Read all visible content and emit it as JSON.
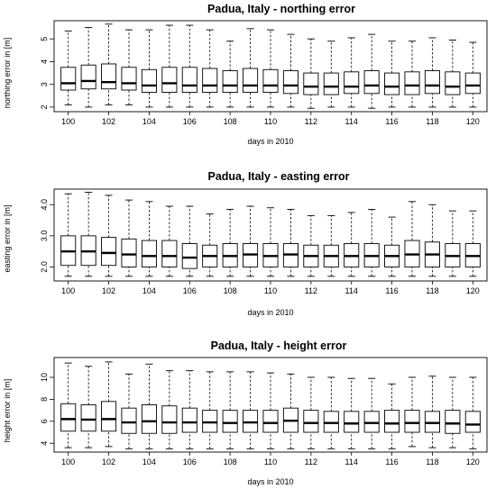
{
  "chart_data": [
    {
      "type": "boxplot",
      "title": "Padua, Italy - northing error",
      "xlabel": "days in 2010",
      "ylabel": "northing error in [m]",
      "ylim": [
        1.8,
        5.8
      ],
      "yticks": [
        2,
        3,
        4,
        5
      ],
      "xtick_labels": [
        "100",
        "102",
        "104",
        "106",
        "108",
        "110",
        "112",
        "114",
        "116",
        "118",
        "120"
      ],
      "days": [
        100,
        101,
        102,
        103,
        104,
        105,
        106,
        107,
        108,
        109,
        110,
        111,
        112,
        113,
        114,
        115,
        116,
        117,
        118,
        119,
        120
      ],
      "min": [
        2.1,
        2.0,
        2.1,
        2.1,
        2.0,
        2.0,
        2.0,
        2.0,
        2.0,
        2.0,
        2.0,
        2.0,
        1.95,
        2.0,
        2.0,
        1.95,
        2.0,
        2.0,
        2.0,
        2.0,
        2.0
      ],
      "q1": [
        2.75,
        2.8,
        2.8,
        2.75,
        2.65,
        2.65,
        2.65,
        2.65,
        2.65,
        2.65,
        2.65,
        2.6,
        2.55,
        2.55,
        2.6,
        2.6,
        2.55,
        2.55,
        2.6,
        2.55,
        2.6
      ],
      "median": [
        3.05,
        3.15,
        3.1,
        3.05,
        2.95,
        3.05,
        2.95,
        2.95,
        2.95,
        2.95,
        2.95,
        2.95,
        2.9,
        2.9,
        2.9,
        2.95,
        2.9,
        2.95,
        2.95,
        2.9,
        2.95
      ],
      "q3": [
        3.75,
        3.85,
        3.9,
        3.75,
        3.65,
        3.75,
        3.75,
        3.7,
        3.6,
        3.7,
        3.65,
        3.6,
        3.5,
        3.5,
        3.55,
        3.6,
        3.5,
        3.55,
        3.6,
        3.55,
        3.5
      ],
      "max": [
        5.35,
        5.5,
        5.65,
        5.4,
        5.4,
        5.6,
        5.6,
        5.4,
        4.9,
        5.45,
        5.4,
        5.2,
        5.0,
        4.9,
        5.05,
        5.2,
        4.9,
        4.9,
        5.05,
        4.95,
        4.85
      ]
    },
    {
      "type": "boxplot",
      "title": "Padua, Italy - easting error",
      "xlabel": "days in 2010",
      "ylabel": "easting error in [m]",
      "ylim": [
        1.55,
        4.5
      ],
      "yticks": [
        2.0,
        3.0,
        4.0
      ],
      "ytick_labels": [
        "2.0",
        "3.0",
        "4.0"
      ],
      "xtick_labels": [
        "100",
        "102",
        "104",
        "106",
        "108",
        "110",
        "112",
        "114",
        "116",
        "118",
        "120"
      ],
      "days": [
        100,
        101,
        102,
        103,
        104,
        105,
        106,
        107,
        108,
        109,
        110,
        111,
        112,
        113,
        114,
        115,
        116,
        117,
        118,
        119,
        120
      ],
      "min": [
        1.7,
        1.7,
        1.7,
        1.7,
        1.7,
        1.7,
        1.7,
        1.7,
        1.7,
        1.7,
        1.7,
        1.7,
        1.7,
        1.7,
        1.7,
        1.7,
        1.7,
        1.7,
        1.7,
        1.7,
        1.7
      ],
      "q1": [
        2.05,
        2.05,
        2.05,
        2.0,
        2.0,
        2.0,
        1.95,
        2.0,
        2.0,
        2.0,
        2.0,
        2.0,
        2.0,
        2.0,
        2.0,
        2.0,
        2.0,
        2.0,
        2.0,
        2.0,
        2.0
      ],
      "median": [
        2.5,
        2.5,
        2.45,
        2.4,
        2.35,
        2.35,
        2.3,
        2.35,
        2.35,
        2.4,
        2.35,
        2.4,
        2.35,
        2.35,
        2.35,
        2.35,
        2.35,
        2.4,
        2.4,
        2.35,
        2.35
      ],
      "q3": [
        3.0,
        3.0,
        2.95,
        2.9,
        2.85,
        2.85,
        2.75,
        2.7,
        2.75,
        2.75,
        2.75,
        2.75,
        2.7,
        2.7,
        2.75,
        2.75,
        2.7,
        2.85,
        2.8,
        2.75,
        2.75
      ],
      "max": [
        4.35,
        4.4,
        4.3,
        4.15,
        4.1,
        3.95,
        3.95,
        3.7,
        3.85,
        3.95,
        3.9,
        3.85,
        3.65,
        3.65,
        3.75,
        3.85,
        3.6,
        4.1,
        4.0,
        3.8,
        3.8
      ]
    },
    {
      "type": "boxplot",
      "title": "Padua, Italy - height error",
      "xlabel": "days in 2010",
      "ylabel": "height error in [m]",
      "ylim": [
        3.2,
        11.8
      ],
      "yticks": [
        4,
        6,
        8,
        10
      ],
      "xtick_labels": [
        "100",
        "102",
        "104",
        "106",
        "108",
        "110",
        "112",
        "114",
        "116",
        "118",
        "120"
      ],
      "days": [
        100,
        101,
        102,
        103,
        104,
        105,
        106,
        107,
        108,
        109,
        110,
        111,
        112,
        113,
        114,
        115,
        116,
        117,
        118,
        119,
        120
      ],
      "min": [
        3.6,
        3.6,
        3.7,
        3.5,
        3.5,
        3.5,
        3.5,
        3.5,
        3.5,
        3.5,
        3.5,
        3.5,
        3.5,
        3.5,
        3.5,
        3.5,
        3.5,
        3.7,
        3.6,
        3.6,
        3.5
      ],
      "q1": [
        5.1,
        5.1,
        5.1,
        4.9,
        4.9,
        4.9,
        5.0,
        5.0,
        5.0,
        5.0,
        5.0,
        5.0,
        5.0,
        5.0,
        5.0,
        5.0,
        5.0,
        5.0,
        5.0,
        4.9,
        5.0
      ],
      "median": [
        6.2,
        6.15,
        6.2,
        5.9,
        6.0,
        5.9,
        5.9,
        5.9,
        5.85,
        5.9,
        5.85,
        6.05,
        5.85,
        5.85,
        5.8,
        5.85,
        5.8,
        5.85,
        5.85,
        5.8,
        5.7
      ],
      "q3": [
        7.6,
        7.5,
        7.8,
        7.2,
        7.5,
        7.4,
        7.2,
        7.0,
        7.0,
        7.0,
        7.0,
        7.2,
        7.0,
        6.9,
        6.9,
        6.9,
        7.0,
        7.0,
        6.9,
        7.0,
        6.9
      ],
      "max": [
        11.3,
        11.0,
        11.4,
        10.3,
        11.2,
        10.6,
        10.6,
        10.5,
        10.5,
        10.5,
        10.4,
        10.3,
        10.0,
        10.0,
        9.9,
        9.9,
        9.4,
        10.0,
        10.1,
        10.0,
        10.0
      ]
    }
  ]
}
